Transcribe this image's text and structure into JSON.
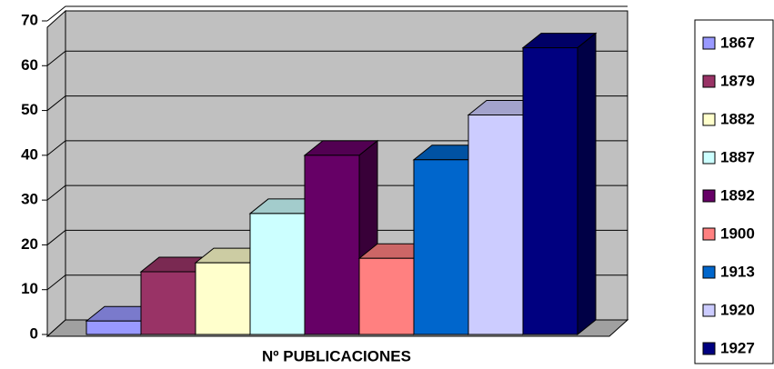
{
  "chart_data": {
    "type": "bar3d",
    "categories": [
      "Nº PUBLICACIONES"
    ],
    "series": [
      {
        "name": "1867",
        "color": "#9999ff",
        "values": [
          3
        ]
      },
      {
        "name": "1879",
        "color": "#993366",
        "values": [
          14
        ]
      },
      {
        "name": "1882",
        "color": "#ffffcc",
        "values": [
          16
        ]
      },
      {
        "name": "1887",
        "color": "#ccffff",
        "values": [
          27
        ]
      },
      {
        "name": "1892",
        "color": "#660066",
        "values": [
          40
        ]
      },
      {
        "name": "1900",
        "color": "#ff8080",
        "values": [
          17
        ]
      },
      {
        "name": "1913",
        "color": "#0066cc",
        "values": [
          39
        ]
      },
      {
        "name": "1920",
        "color": "#ccccff",
        "values": [
          49
        ]
      },
      {
        "name": "1927",
        "color": "#000080",
        "values": [
          64
        ]
      }
    ],
    "ylim": [
      0,
      70
    ],
    "yticks": [
      0,
      10,
      20,
      30,
      40,
      50,
      60,
      70
    ],
    "grid": true,
    "legend": "right"
  }
}
